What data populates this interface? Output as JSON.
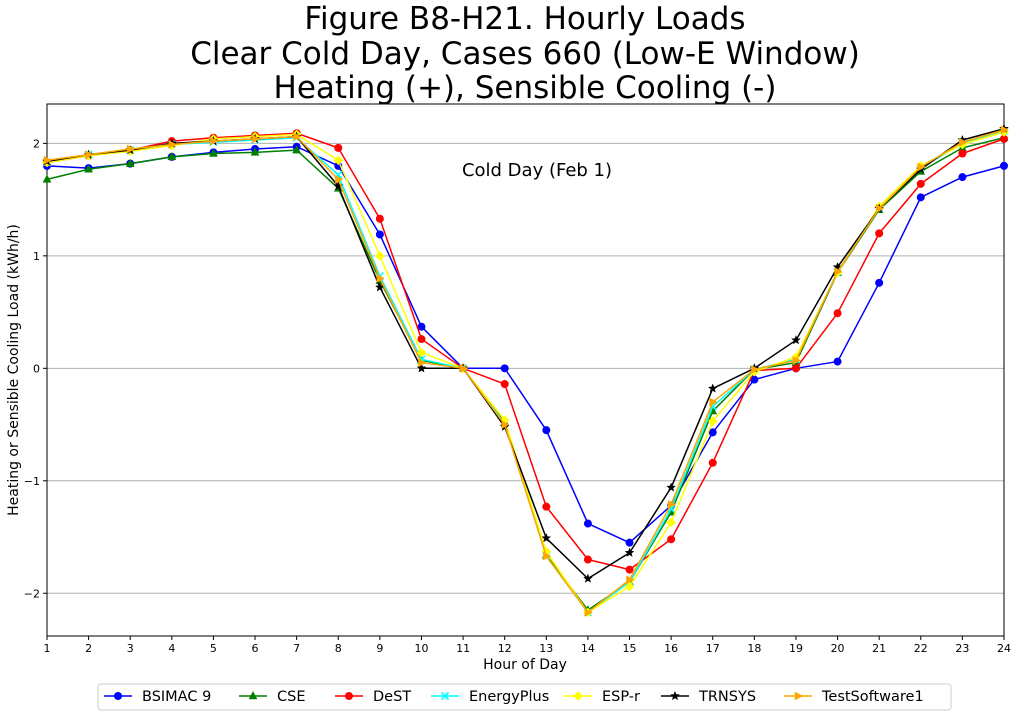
{
  "chart_data": {
    "type": "line",
    "title_lines": [
      "Figure B8-H21. Hourly Loads",
      "Clear Cold Day, Cases 660 (Low-E Window)",
      "Heating (+), Sensible Cooling (-)"
    ],
    "xlabel": "Hour of Day",
    "ylabel": "Heating or Sensible Cooling Load (kWh/h)",
    "annotation": "Cold Day (Feb 1)",
    "x": [
      1,
      2,
      3,
      4,
      5,
      6,
      7,
      8,
      9,
      10,
      11,
      12,
      13,
      14,
      15,
      16,
      17,
      18,
      19,
      20,
      21,
      22,
      23,
      24
    ],
    "x_tick_labels": [
      "1",
      "2",
      "3",
      "4",
      "5",
      "6",
      "7",
      "8",
      "9",
      "10",
      "11",
      "12",
      "13",
      "14",
      "15",
      "16",
      "17",
      "18",
      "19",
      "20",
      "21",
      "22",
      "23",
      "24"
    ],
    "y_ticks": [
      -2,
      -1,
      0,
      1,
      2
    ],
    "y_tick_labels": [
      "−2",
      "−1",
      "0",
      "1",
      "2"
    ],
    "xlim": [
      1,
      24
    ],
    "ylim": [
      -2.38,
      2.35
    ],
    "grid": "horizontal",
    "legend_placement": "bottom-center",
    "series": [
      {
        "name": "BSIMAC 9",
        "color": "#0000ff",
        "marker": "circle",
        "values": [
          1.8,
          1.78,
          1.82,
          1.88,
          1.92,
          1.95,
          1.97,
          1.8,
          1.19,
          0.37,
          0.0,
          0.0,
          -0.55,
          -1.38,
          -1.55,
          -1.22,
          -0.57,
          -0.1,
          0.0,
          0.06,
          0.76,
          1.52,
          1.7,
          1.8
        ]
      },
      {
        "name": "CSE",
        "color": "#008000",
        "marker": "triangle-up",
        "values": [
          1.68,
          1.77,
          1.82,
          1.88,
          1.91,
          1.92,
          1.94,
          1.6,
          0.78,
          0.07,
          0.0,
          -0.48,
          -1.66,
          -2.15,
          -1.9,
          -1.28,
          -0.38,
          -0.01,
          0.05,
          0.85,
          1.41,
          1.75,
          1.96,
          2.05
        ]
      },
      {
        "name": "DeST",
        "color": "#ff0000",
        "marker": "circle",
        "values": [
          1.83,
          1.89,
          1.94,
          2.02,
          2.05,
          2.07,
          2.09,
          1.96,
          1.33,
          0.26,
          0.0,
          -0.14,
          -1.23,
          -1.7,
          -1.79,
          -1.52,
          -0.84,
          -0.02,
          0.0,
          0.49,
          1.2,
          1.64,
          1.91,
          2.04
        ]
      },
      {
        "name": "EnergyPlus",
        "color": "#00ffff",
        "marker": "x",
        "values": [
          1.83,
          1.9,
          1.94,
          1.99,
          2.01,
          2.03,
          2.05,
          1.72,
          0.82,
          0.08,
          0.0,
          -0.49,
          -1.67,
          -2.17,
          -1.9,
          -1.25,
          -0.34,
          -0.01,
          0.08,
          0.86,
          1.42,
          1.78,
          2.0,
          2.11
        ]
      },
      {
        "name": "ESP-r",
        "color": "#ffff00",
        "marker": "diamond",
        "values": [
          1.83,
          1.89,
          1.93,
          1.98,
          2.04,
          2.06,
          2.08,
          1.85,
          1.0,
          0.14,
          0.0,
          -0.46,
          -1.63,
          -2.17,
          -1.94,
          -1.37,
          -0.47,
          -0.03,
          0.1,
          0.85,
          1.44,
          1.8,
          1.99,
          2.1
        ]
      },
      {
        "name": "TRNSYS",
        "color": "#000000",
        "marker": "star",
        "values": [
          1.84,
          1.9,
          1.94,
          2.0,
          2.02,
          2.04,
          2.06,
          1.62,
          0.72,
          0.0,
          0.0,
          -0.52,
          -1.51,
          -1.87,
          -1.64,
          -1.06,
          -0.18,
          0.0,
          0.25,
          0.9,
          1.42,
          1.77,
          2.03,
          2.13
        ]
      },
      {
        "name": "TestSoftware1",
        "color": "#ffa500",
        "marker": "triangle-right",
        "values": [
          1.85,
          1.9,
          1.95,
          1.99,
          2.02,
          2.04,
          2.06,
          1.68,
          0.8,
          0.05,
          0.0,
          -0.5,
          -1.67,
          -2.17,
          -1.88,
          -1.21,
          -0.3,
          -0.01,
          0.07,
          0.86,
          1.42,
          1.79,
          2.01,
          2.12
        ]
      }
    ]
  }
}
